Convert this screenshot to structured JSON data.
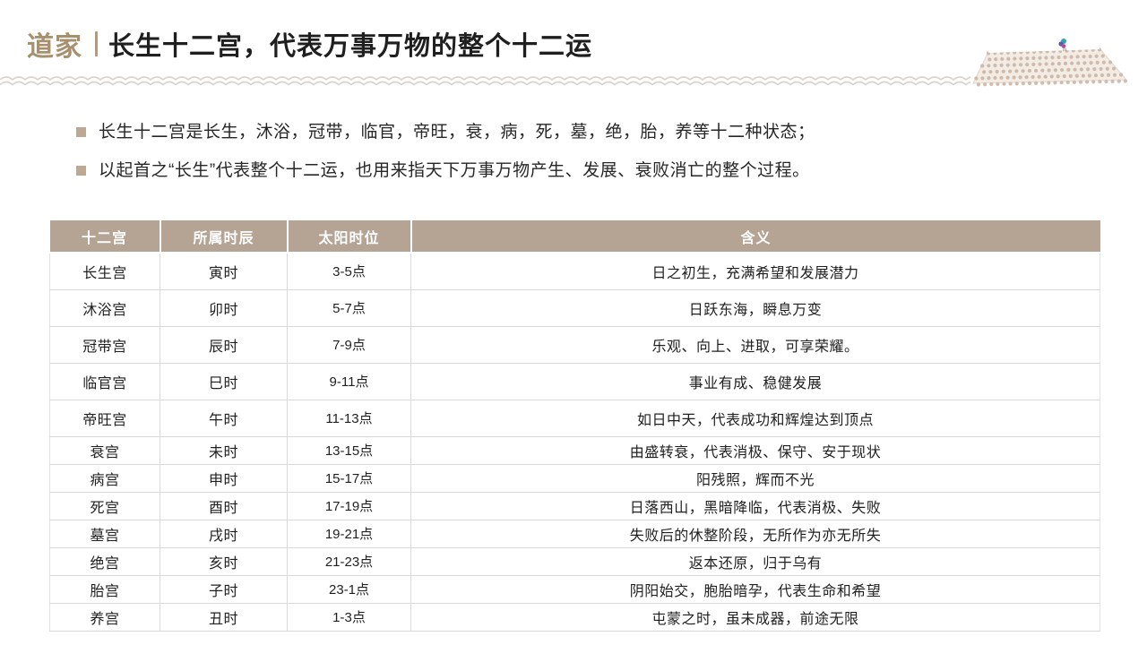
{
  "header": {
    "category": "道家",
    "title": "长生十二宫，代表万事万物的整个十二运"
  },
  "bullets": [
    "长生十二宫是长生，沐浴，冠带，临官，帝旺，衰，病，死，墓，绝，胎，养等十二种状态；",
    "以起首之“长生”代表整个十二运，也用来指天下万事万物产生、发展、衰败消亡的整个过程。"
  ],
  "table": {
    "columns": [
      "十二宫",
      "所属时辰",
      "太阳时位",
      "含义"
    ],
    "rows": [
      {
        "palace": "长生宫",
        "hour": "寅时",
        "sun": "3-5点",
        "meaning": "日之初生，充满希望和发展潜力"
      },
      {
        "palace": "沐浴宫",
        "hour": "卯时",
        "sun": "5-7点",
        "meaning": "日跃东海，瞬息万变"
      },
      {
        "palace": "冠带宫",
        "hour": "辰时",
        "sun": "7-9点",
        "meaning": "乐观、向上、进取，可享荣耀。"
      },
      {
        "palace": "临官宫",
        "hour": "巳时",
        "sun": "9-11点",
        "meaning": "事业有成、稳健发展"
      },
      {
        "palace": "帝旺宫",
        "hour": "午时",
        "sun": "11-13点",
        "meaning": "如日中天，代表成功和辉煌达到顶点"
      },
      {
        "palace": "衰宫",
        "hour": "未时",
        "sun": "13-15点",
        "meaning": "由盛转衰，代表消极、保守、安于现状"
      },
      {
        "palace": "病宫",
        "hour": "申时",
        "sun": "15-17点",
        "meaning": "阳残照，辉而不光"
      },
      {
        "palace": "死宫",
        "hour": "酉时",
        "sun": "17-19点",
        "meaning": "日落西山，黑暗降临，代表消极、失败"
      },
      {
        "palace": "墓宫",
        "hour": "戌时",
        "sun": "19-21点",
        "meaning": "失败后的休整阶段，无所作为亦无所失"
      },
      {
        "palace": "绝宫",
        "hour": "亥时",
        "sun": "21-23点",
        "meaning": "返本还原，归于乌有"
      },
      {
        "palace": "胎宫",
        "hour": "子时",
        "sun": "23-1点",
        "meaning": "阴阳始交，胞胎暗孕，代表生命和希望"
      },
      {
        "palace": "养宫",
        "hour": "丑时",
        "sun": "1-3点",
        "meaning": "屯蒙之时，虽未成器，前途无限"
      }
    ]
  },
  "icons": {
    "roof_illustration": "tiled-roof-with-bird-icon",
    "wave_divider": "double-wave-divider",
    "bullet": "square-bullet-icon"
  },
  "colors": {
    "accent": "#a8906f",
    "table_header_bg": "#b5a394",
    "wave": "#dcd2cb",
    "tile": "#c9b3a0",
    "tile_bg": "#f3ece5",
    "border": "#d9d9d9",
    "text": "#262626",
    "bird_teal": "#2fa6b8",
    "bird_indigo": "#5a5aa8",
    "bird_magenta": "#b24f9c"
  }
}
